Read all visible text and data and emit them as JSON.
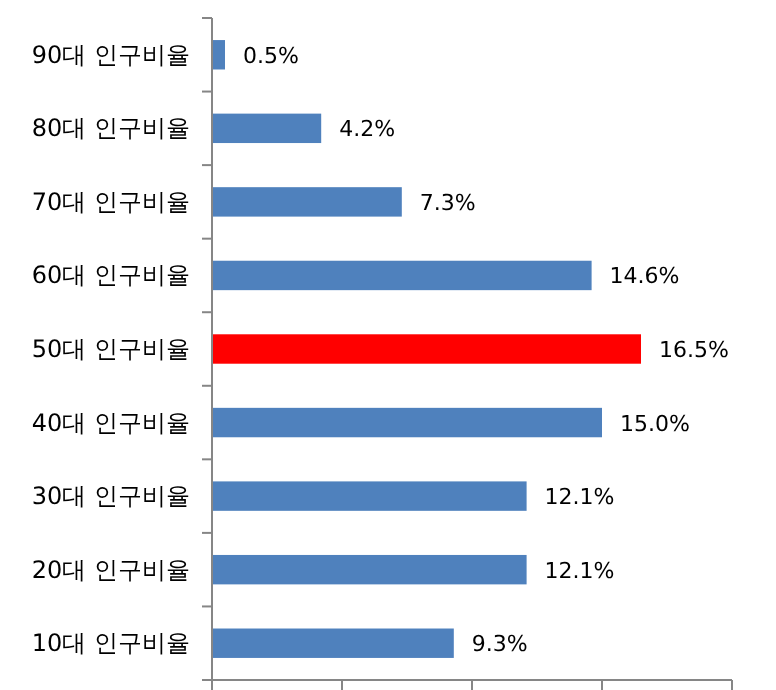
{
  "chart_data": {
    "type": "bar",
    "orientation": "horizontal",
    "categories": [
      "90대 인구비율",
      "80대 인구비율",
      "70대 인구비율",
      "60대 인구비율",
      "50대 인구비율",
      "40대 인구비율",
      "30대 인구비율",
      "20대 인구비율",
      "10대 인구비율"
    ],
    "values": [
      0.5,
      4.2,
      7.3,
      14.6,
      16.5,
      15.0,
      12.1,
      12.1,
      9.3
    ],
    "colors": [
      "#4f81bd",
      "#4f81bd",
      "#4f81bd",
      "#4f81bd",
      "#ff0000",
      "#4f81bd",
      "#4f81bd",
      "#4f81bd",
      "#4f81bd"
    ],
    "value_labels": [
      "0.5%",
      "4.2%",
      "7.3%",
      "14.6%",
      "16.5%",
      "15.0%",
      "12.1%",
      "12.1%",
      "9.3%"
    ],
    "xlim": [
      0,
      20
    ],
    "xticks": [
      {
        "value": 0,
        "label": null
      },
      {
        "value": 5,
        "label": null
      },
      {
        "value": 10,
        "label": null
      },
      {
        "value": 15,
        "label": null
      },
      {
        "value": 20,
        "label": null
      }
    ],
    "tick_labels": "y",
    "grid": false
  }
}
